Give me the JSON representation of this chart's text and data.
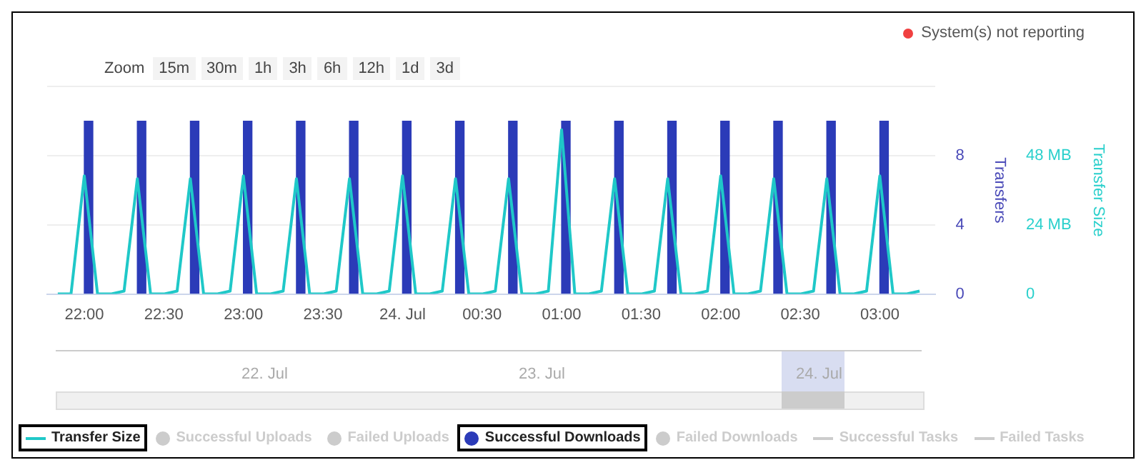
{
  "chart_data": {
    "type": "bar",
    "annotations": [
      "System(s) not reporting",
      "Zoom",
      "15m",
      "30m",
      "1h",
      "3h",
      "6h",
      "12h",
      "1d",
      "3d",
      "22. Jul",
      "23. Jul",
      "24. Jul"
    ],
    "ylabel": "Transfers",
    "y2label": "Transfer Size",
    "xlim": [
      "--07-23T21:46",
      "--07-24T03:21"
    ],
    "xticks": [
      {
        "value": "--07-23T22:00",
        "label": "22:00"
      },
      {
        "value": "--07-23T22:30",
        "label": "22:30"
      },
      {
        "value": "--07-23T23:00",
        "label": "23:00"
      },
      {
        "value": "--07-23T23:30",
        "label": "23:30"
      },
      {
        "value": "--07-24T00:00",
        "label": "24. Jul"
      },
      {
        "value": "--07-24T00:30",
        "label": "00:30"
      },
      {
        "value": "--07-24T01:00",
        "label": "01:00"
      },
      {
        "value": "--07-24T01:30",
        "label": "01:30"
      },
      {
        "value": "--07-24T02:00",
        "label": "02:00"
      },
      {
        "value": "--07-24T02:30",
        "label": "02:30"
      },
      {
        "value": "--07-24T03:00",
        "label": "03:00"
      }
    ],
    "ylim": [
      0,
      12
    ],
    "yticks": [
      0,
      4,
      8,
      {
        "value": 12,
        "label": null
      }
    ],
    "y2lim": [
      0,
      72
    ],
    "y2ticks": [
      0,
      {
        "value": 24,
        "label": "24 MB"
      },
      {
        "value": 48,
        "label": "48 MB"
      },
      {
        "value": 72,
        "label": null
      }
    ],
    "grid": "y",
    "legend": "bottom",
    "series": [
      {
        "name": "Transfer Size",
        "type": "line",
        "axis": "y2",
        "color": "#1fc8c8",
        "x": [
          "--07-23T21:50",
          "--07-23T21:55",
          "--07-23T22:00",
          "--07-23T22:05",
          "--07-23T22:10",
          "--07-23T22:15",
          "--07-23T22:20",
          "--07-23T22:25",
          "--07-23T22:30",
          "--07-23T22:35",
          "--07-23T22:40",
          "--07-23T22:45",
          "--07-23T22:50",
          "--07-23T22:55",
          "--07-23T23:00",
          "--07-23T23:05",
          "--07-23T23:10",
          "--07-23T23:15",
          "--07-23T23:20",
          "--07-23T23:25",
          "--07-23T23:30",
          "--07-23T23:35",
          "--07-23T23:40",
          "--07-23T23:45",
          "--07-23T23:50",
          "--07-23T23:55",
          "--07-24T00:00",
          "--07-24T00:05",
          "--07-24T00:10",
          "--07-24T00:15",
          "--07-24T00:20",
          "--07-24T00:25",
          "--07-24T00:30",
          "--07-24T00:35",
          "--07-24T00:40",
          "--07-24T00:45",
          "--07-24T00:50",
          "--07-24T00:55",
          "--07-24T01:00",
          "--07-24T01:05",
          "--07-24T01:10",
          "--07-24T01:15",
          "--07-24T01:20",
          "--07-24T01:25",
          "--07-24T01:30",
          "--07-24T01:35",
          "--07-24T01:40",
          "--07-24T01:45",
          "--07-24T01:50",
          "--07-24T01:55",
          "--07-24T02:00",
          "--07-24T02:05",
          "--07-24T02:10",
          "--07-24T02:15",
          "--07-24T02:20",
          "--07-24T02:25",
          "--07-24T02:30",
          "--07-24T02:35",
          "--07-24T02:40",
          "--07-24T02:45",
          "--07-24T02:50",
          "--07-24T02:55",
          "--07-24T03:00",
          "--07-24T03:05",
          "--07-24T03:10",
          "--07-24T03:15"
        ],
        "values": [
          0,
          0,
          41,
          0,
          0,
          1,
          40,
          0,
          0,
          1,
          40,
          0,
          0,
          1,
          41,
          0,
          0,
          1,
          40,
          0,
          0,
          1,
          40,
          0,
          0,
          1,
          41,
          0,
          0,
          1,
          40,
          0,
          0,
          1,
          40,
          0,
          0,
          1,
          57,
          0,
          0,
          1,
          40,
          0,
          0,
          1,
          40,
          0,
          0,
          1,
          41,
          0,
          0,
          1,
          40,
          0,
          0,
          1,
          40,
          0,
          0,
          1,
          41,
          0,
          0,
          1
        ]
      },
      {
        "name": "Successful Uploads",
        "axis": "y",
        "color": "#cccccc"
      },
      {
        "name": "Failed Uploads",
        "axis": "y",
        "color": "#cccccc"
      },
      {
        "name": "Successful Downloads",
        "axis": "y",
        "color": "#2b3bb8",
        "x": [
          "--07-23T22:00",
          "--07-23T22:20",
          "--07-23T22:40",
          "--07-23T23:00",
          "--07-23T23:20",
          "--07-23T23:40",
          "--07-24T00:00",
          "--07-24T00:20",
          "--07-24T00:40",
          "--07-24T01:00",
          "--07-24T01:20",
          "--07-24T01:40",
          "--07-24T02:00",
          "--07-24T02:20",
          "--07-24T02:40",
          "--07-24T03:00"
        ],
        "values": [
          10,
          10,
          10,
          10,
          10,
          10,
          10,
          10,
          10,
          10,
          10,
          10,
          10,
          10,
          10,
          10
        ]
      },
      {
        "name": "Failed Downloads",
        "axis": "y",
        "color": "#cccccc"
      },
      {
        "name": "Successful Tasks",
        "type": "line",
        "axis": "y",
        "color": "#cccccc"
      },
      {
        "name": "Failed Tasks",
        "type": "line",
        "axis": "y",
        "color": "#cccccc"
      }
    ]
  }
}
